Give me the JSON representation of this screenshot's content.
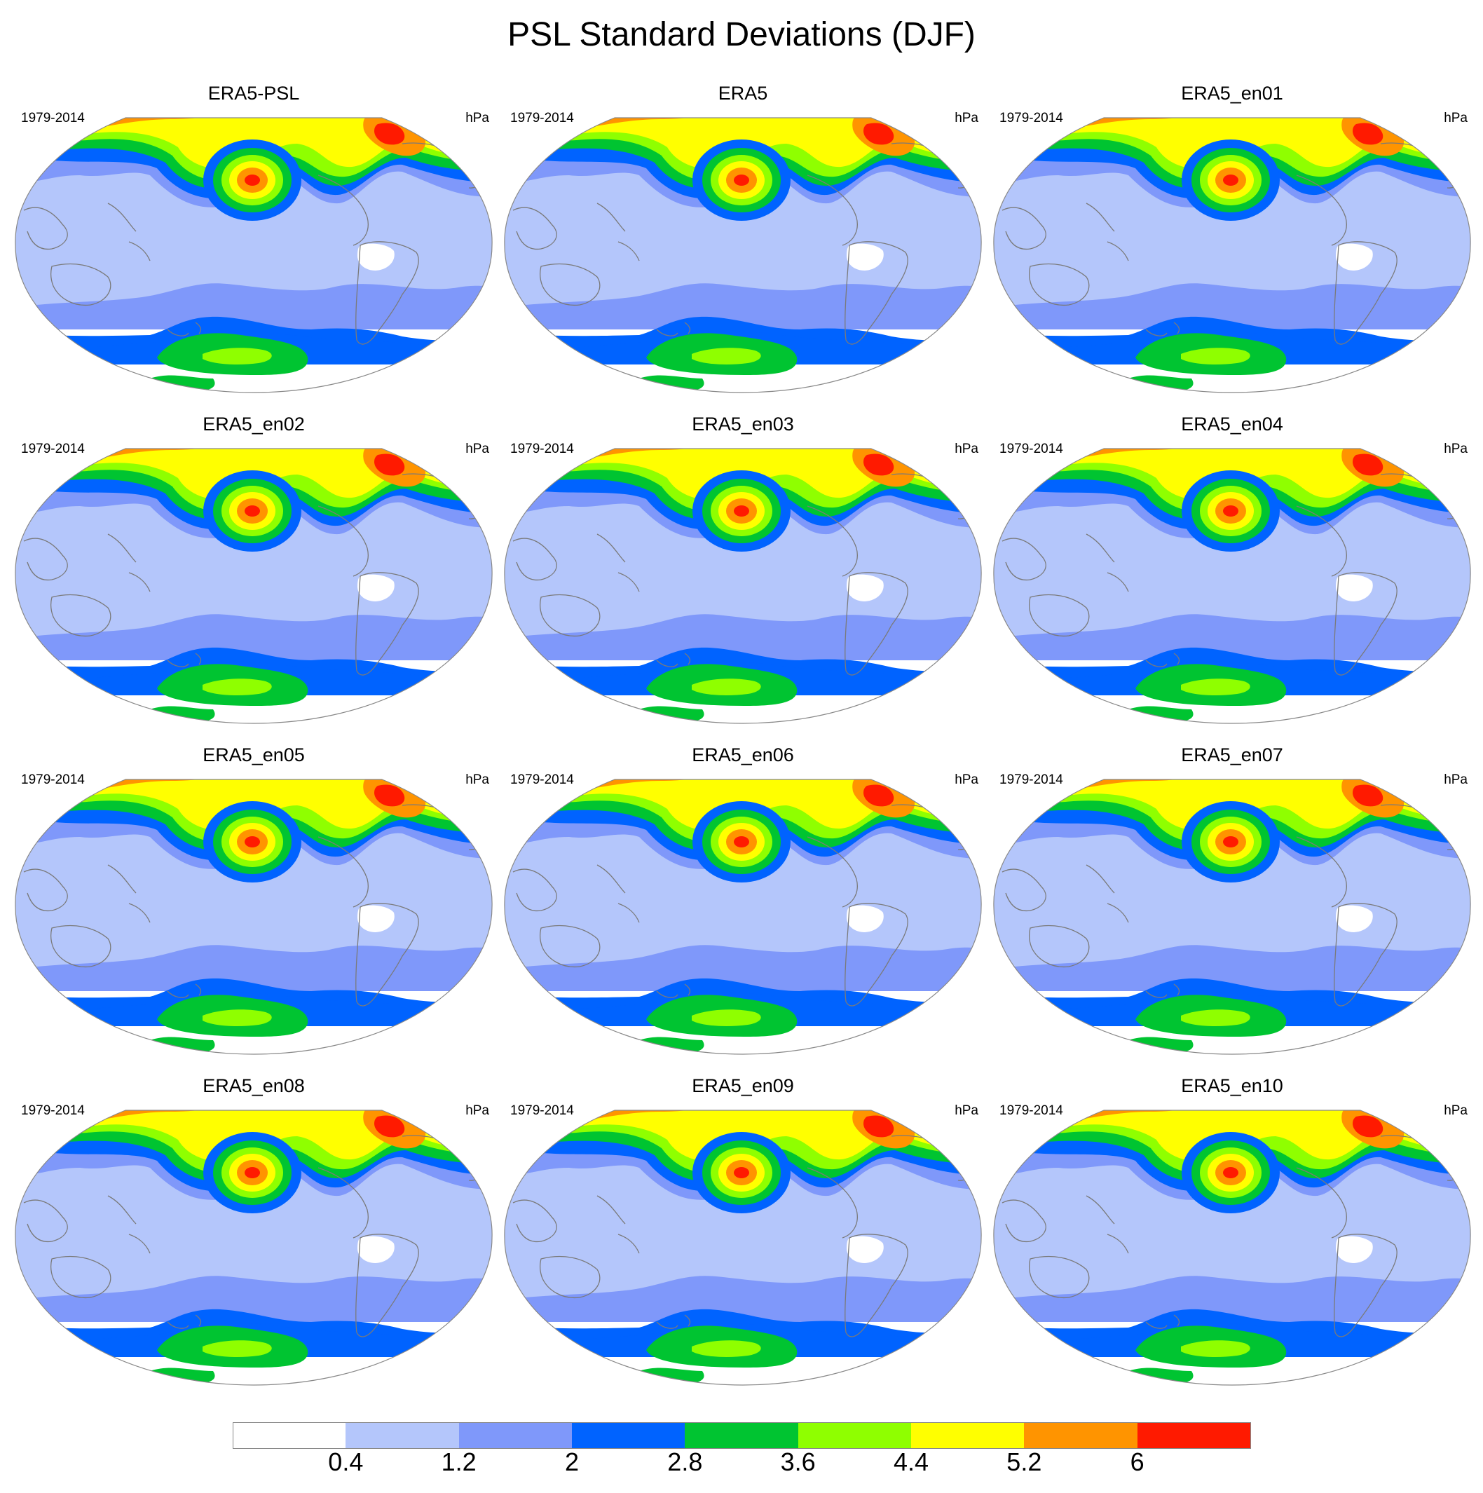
{
  "title": "PSL Standard Deviations (DJF)",
  "panel_defaults": {
    "left_label": "1979-2014",
    "right_label": "hPa"
  },
  "panels": [
    {
      "title": "ERA5-PSL"
    },
    {
      "title": "ERA5"
    },
    {
      "title": "ERA5_en01"
    },
    {
      "title": "ERA5_en02"
    },
    {
      "title": "ERA5_en03"
    },
    {
      "title": "ERA5_en04"
    },
    {
      "title": "ERA5_en05"
    },
    {
      "title": "ERA5_en06"
    },
    {
      "title": "ERA5_en07"
    },
    {
      "title": "ERA5_en08"
    },
    {
      "title": "ERA5_en09"
    },
    {
      "title": "ERA5_en10"
    }
  ],
  "colorbar": {
    "levels": [
      "0.4",
      "1.2",
      "2",
      "2.8",
      "3.6",
      "4.4",
      "5.2",
      "6"
    ],
    "colors": [
      "#ffffff",
      "#b4c6fb",
      "#7f98fa",
      "#0063ff",
      "#00c431",
      "#8fff00",
      "#ffff00",
      "#ff9400",
      "#ff1a00"
    ]
  },
  "field_colors": {
    "ocean_base": "#b4c6fb",
    "coastline": "#7a7a7a"
  }
}
